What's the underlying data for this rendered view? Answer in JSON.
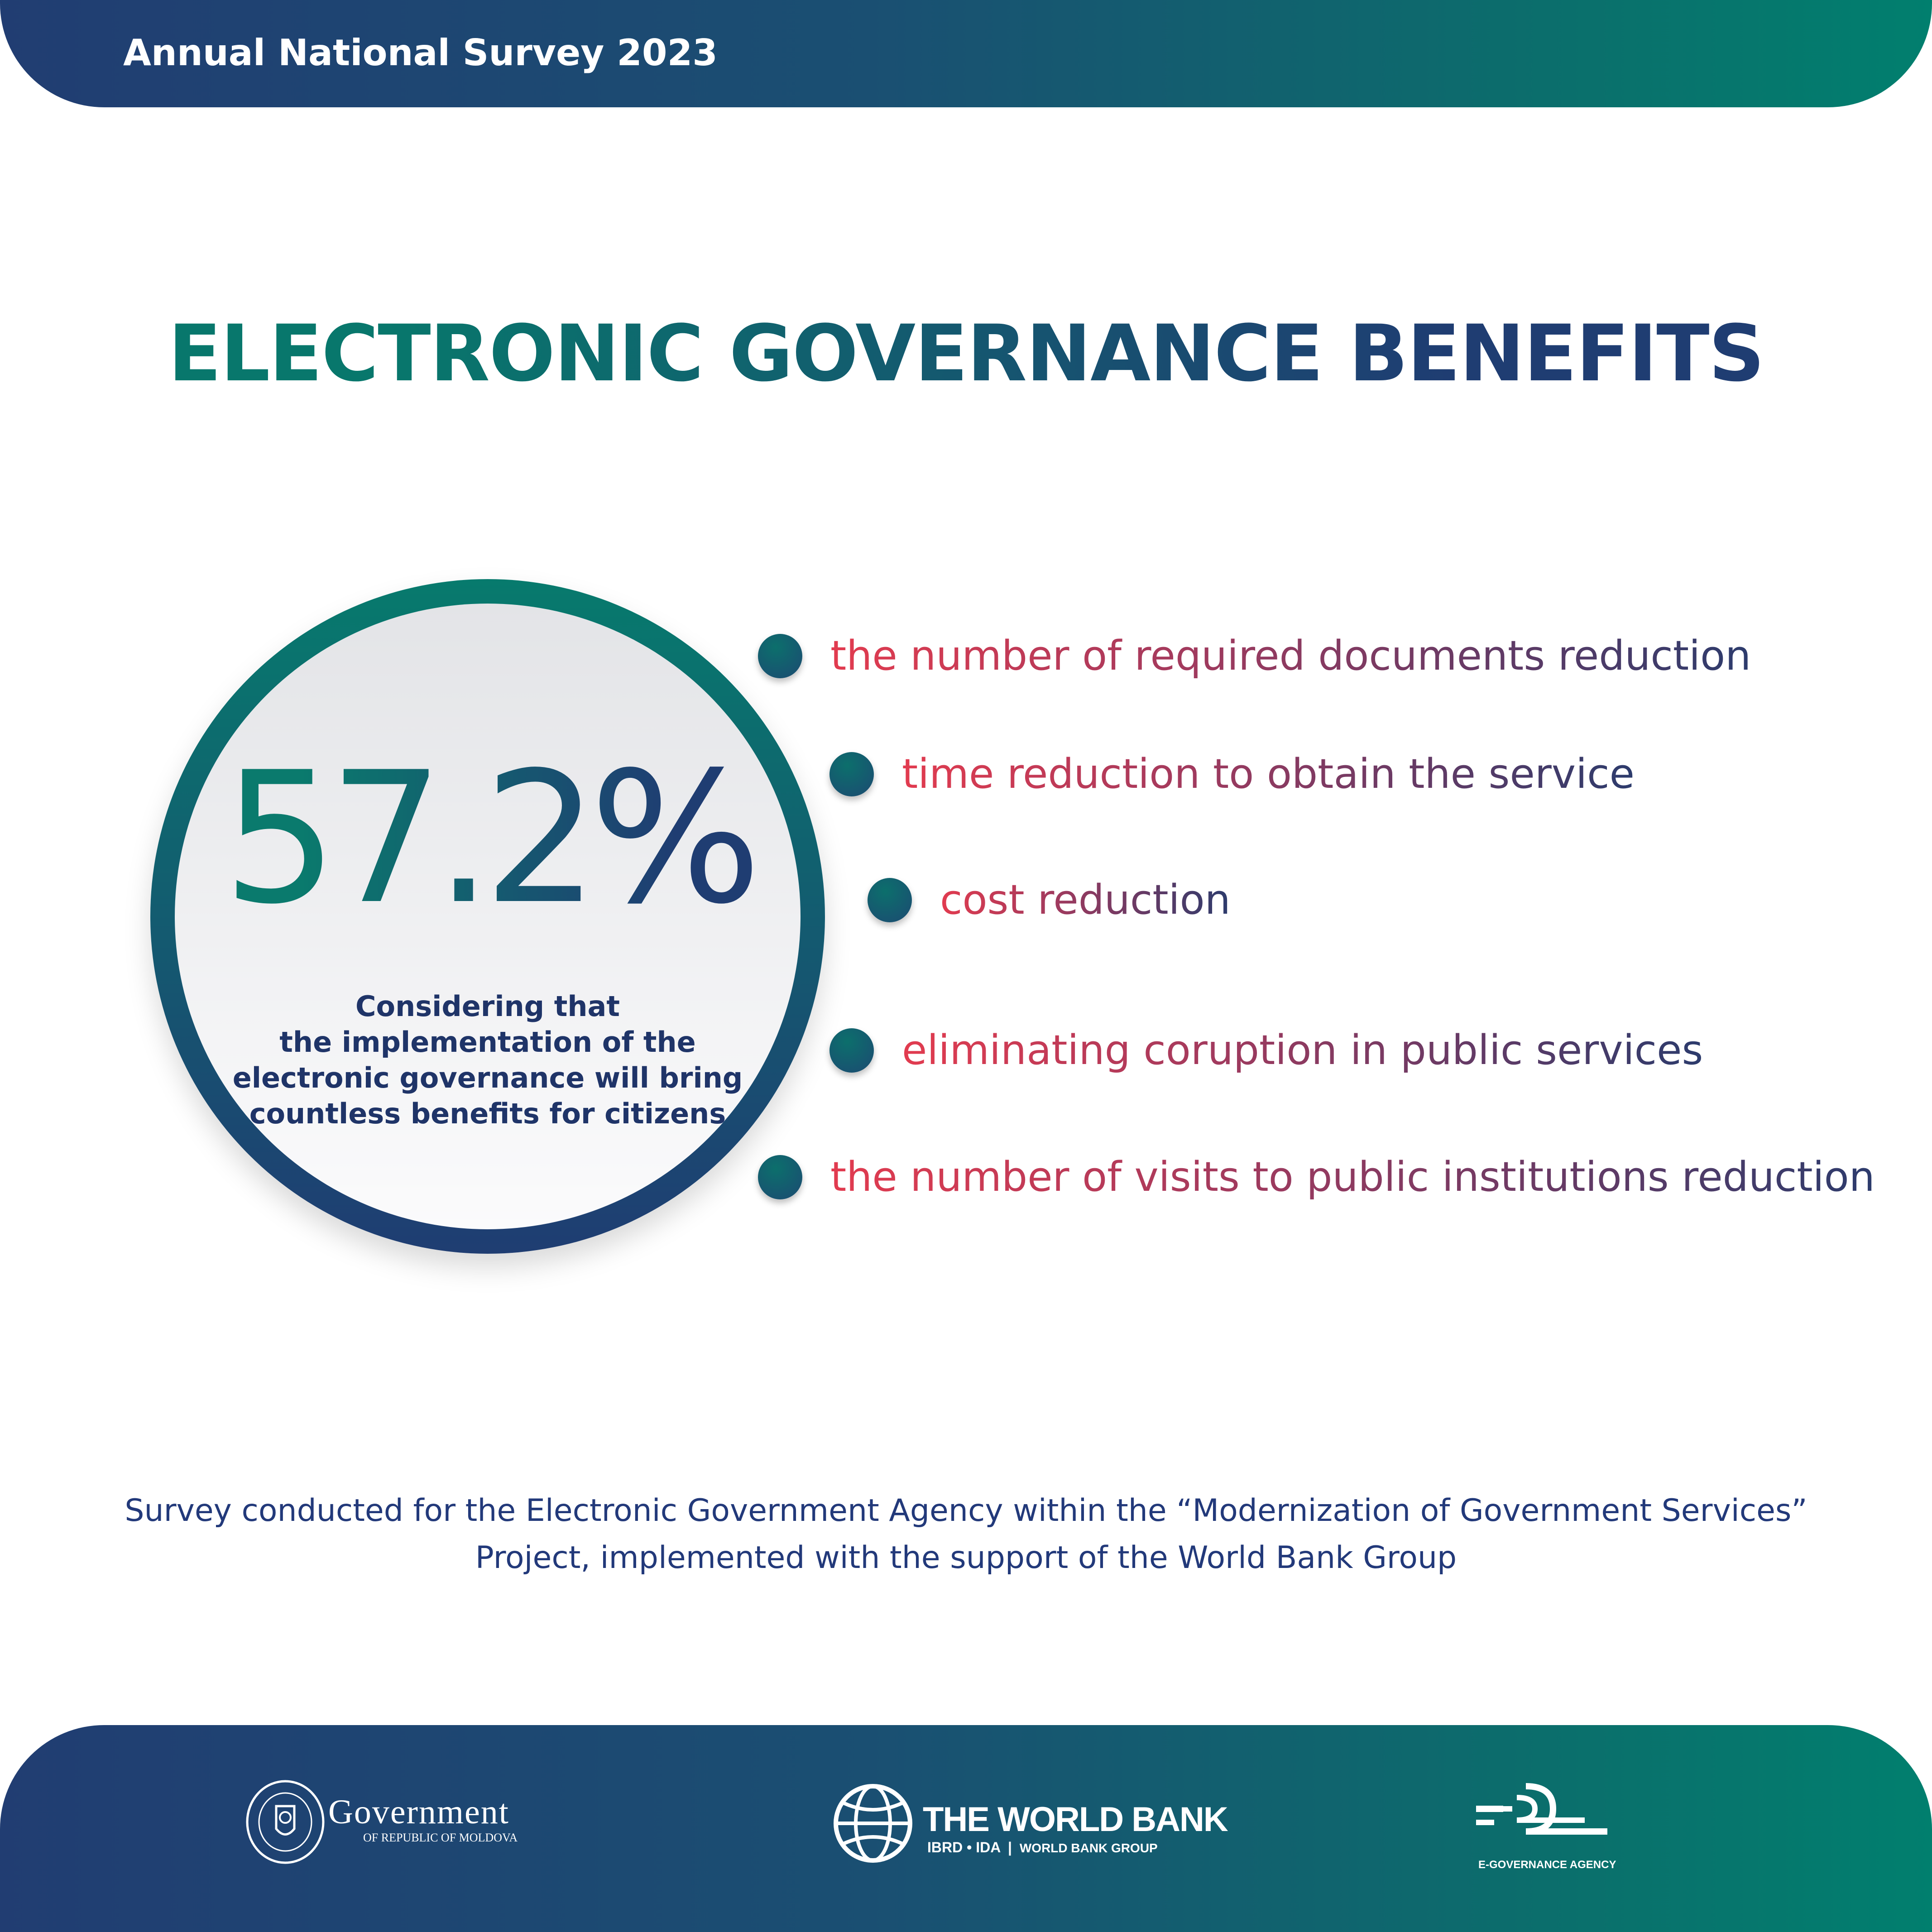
{
  "header": {
    "title": "Annual National Survey 2023"
  },
  "main_title": "ELECTRONIC GOVERNANCE BENEFITS",
  "stat": {
    "value": "57.2%",
    "caption": [
      "Considering that",
      "the implementation of the",
      "electronic governance will bring",
      "countless benefits for citizens"
    ]
  },
  "benefits": [
    "the number of required documents reduction",
    "time reduction to obtain the service",
    "cost reduction",
    "eliminating coruption in public services",
    "the number of visits to public institutions reduction"
  ],
  "footnote": [
    "Survey conducted for the Electronic Government Agency within the “Modernization of Government Services”",
    "Project, implemented with the support of the World Bank Group"
  ],
  "footer": {
    "government": {
      "name": "Government",
      "sub": "OF REPUBLIC OF MOLDOVA"
    },
    "world_bank": {
      "name": "THE WORLD BANK",
      "sub1": "IBRD • IDA",
      "sub2": "WORLD BANK GROUP"
    },
    "egov": {
      "name": "E-GOVERNANCE AGENCY"
    }
  }
}
